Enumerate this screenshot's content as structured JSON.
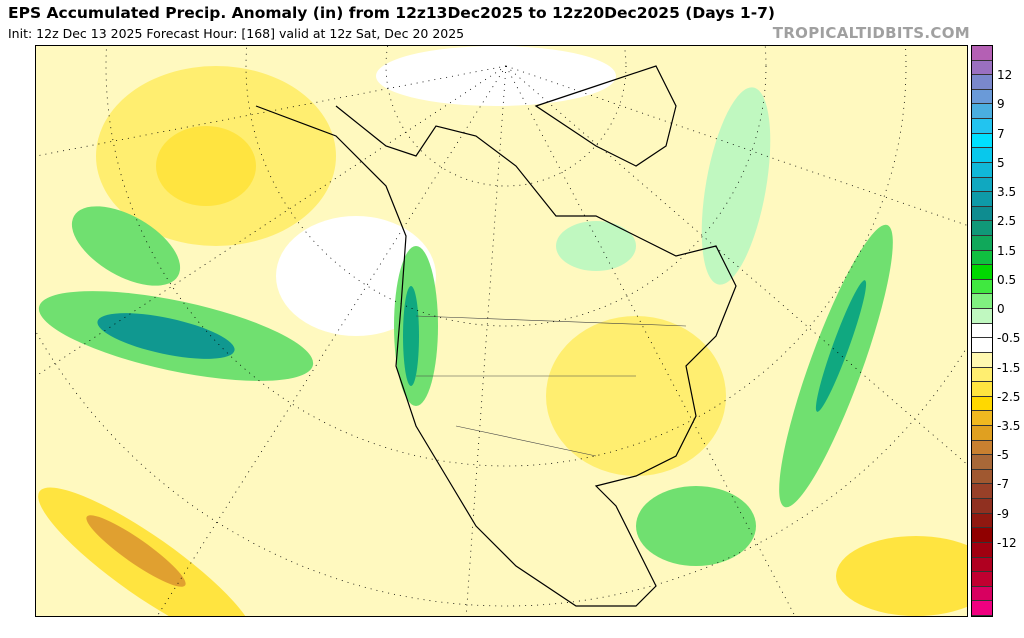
{
  "header": {
    "title": "EPS Accumulated Precip. Anomaly (in) from 12z13Dec2025 to 12z20Dec2025 (Days 1-7)",
    "subtitle": "Init: 12z Dec 13 2025   Forecast Hour: [168]   valid at 12z Sat, Dec 20 2025",
    "brand": "TROPICALTIDBITS.COM"
  },
  "colorbar": {
    "labels": [
      "12",
      "9",
      "7",
      "5",
      "3.5",
      "2.5",
      "1.5",
      "0.5",
      "0",
      "-0.5",
      "-1.5",
      "-2.5",
      "-3.5",
      "-5",
      "-7",
      "-9",
      "-12"
    ],
    "colors": [
      "#b460b4",
      "#9a70c0",
      "#7a88cc",
      "#6a9ad8",
      "#4aaee0",
      "#22c4f0",
      "#00e0ff",
      "#08c8ec",
      "#10b8d8",
      "#10a8c0",
      "#0e9aa8",
      "#0e8c90",
      "#109878",
      "#10a85a",
      "#10c040",
      "#00d800",
      "#40e840",
      "#80f080",
      "#c0f8c0",
      "#ffffff",
      "#ffffff",
      "#fff8b0",
      "#ffee70",
      "#ffe440",
      "#ffd800",
      "#f0b820",
      "#e0a020",
      "#c88030",
      "#a86838",
      "#a05830",
      "#984028",
      "#903020",
      "#901810",
      "#900000",
      "#a00010",
      "#b00020",
      "#c00030",
      "#d80060",
      "#f00080"
    ],
    "map_colors": {
      "base": "#fff9bf",
      "white": "#ffffff",
      "yellow": "#ffee70",
      "gold": "#ffe440",
      "orange": "#e8b030",
      "lightgreen": "#c0f8c0",
      "green": "#70e070",
      "darkgreen": "#10b050",
      "teal": "#109890"
    }
  }
}
